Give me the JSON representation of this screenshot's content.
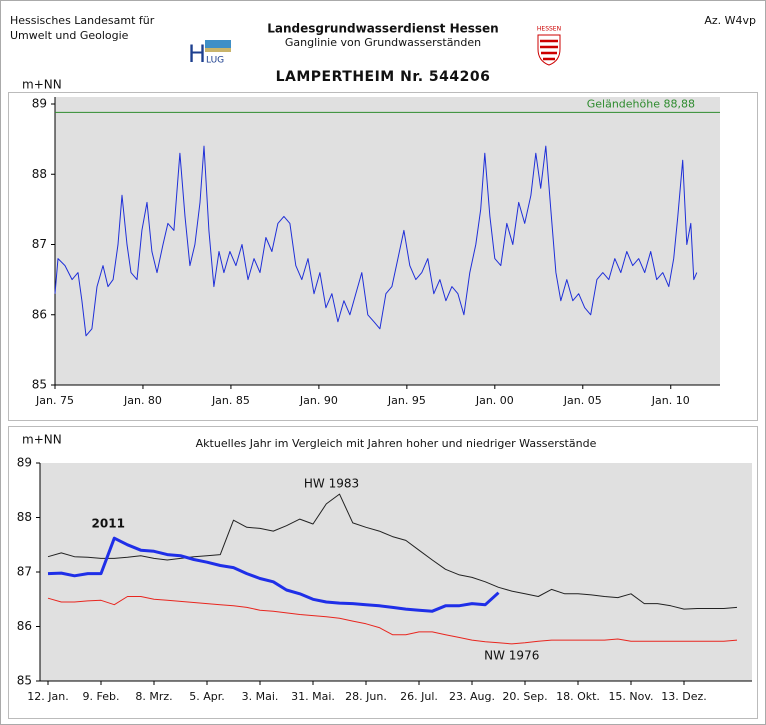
{
  "header": {
    "agency": [
      "Hessisches Landesamt für",
      "Umwelt und Geologie"
    ],
    "service": "Landesgrundwasserdienst  Hessen",
    "subtitle": "Ganglinie von Grundwasserständen",
    "station": "LAMPERTHEIM  Nr. 544206",
    "reference": "Az. W4vp",
    "logo_h": "H",
    "logo_lug": "LUG",
    "state": "HESSEN"
  },
  "chart_data": [
    {
      "type": "line",
      "ylabel": "m+NN",
      "x": [
        1975.0,
        1975.17,
        1975.57,
        1975.97,
        1976.31,
        1976.53,
        1976.76,
        1977.1,
        1977.39,
        1977.73,
        1978.01,
        1978.3,
        1978.58,
        1978.81,
        1979.09,
        1979.32,
        1979.66,
        1979.94,
        1980.23,
        1980.51,
        1980.8,
        1981.14,
        1981.42,
        1981.76,
        1982.1,
        1982.39,
        1982.67,
        1982.95,
        1983.24,
        1983.47,
        1983.75,
        1984.03,
        1984.32,
        1984.6,
        1984.94,
        1985.28,
        1985.63,
        1985.97,
        1986.31,
        1986.65,
        1986.99,
        1987.33,
        1987.67,
        1988.01,
        1988.35,
        1988.69,
        1989.03,
        1989.38,
        1989.72,
        1990.06,
        1990.4,
        1990.74,
        1991.08,
        1991.42,
        1991.76,
        1992.1,
        1992.44,
        1992.78,
        1993.13,
        1993.47,
        1993.81,
        1994.15,
        1994.49,
        1994.83,
        1995.17,
        1995.51,
        1995.85,
        1996.19,
        1996.53,
        1996.88,
        1997.22,
        1997.56,
        1997.9,
        1998.24,
        1998.58,
        1998.92,
        1999.2,
        1999.43,
        1999.72,
        2000.0,
        2000.34,
        2000.68,
        2001.02,
        2001.36,
        2001.7,
        2002.05,
        2002.33,
        2002.61,
        2002.9,
        2003.18,
        2003.47,
        2003.75,
        2004.09,
        2004.43,
        2004.77,
        2005.11,
        2005.45,
        2005.8,
        2006.14,
        2006.48,
        2006.82,
        2007.16,
        2007.5,
        2007.84,
        2008.18,
        2008.52,
        2008.86,
        2009.2,
        2009.55,
        2009.89,
        2010.17,
        2010.4,
        2010.68,
        2010.91,
        2011.14,
        2011.31,
        2011.48
      ],
      "series": [
        {
          "color": "#1f2fd8",
          "values": [
            86.3,
            86.8,
            86.7,
            86.5,
            86.6,
            86.2,
            85.7,
            85.8,
            86.4,
            86.7,
            86.4,
            86.5,
            87.0,
            87.7,
            87.0,
            86.6,
            86.5,
            87.2,
            87.6,
            86.9,
            86.6,
            87.0,
            87.3,
            87.2,
            88.3,
            87.4,
            86.7,
            87.0,
            87.6,
            88.4,
            87.2,
            86.4,
            86.9,
            86.6,
            86.9,
            86.7,
            87.0,
            86.5,
            86.8,
            86.6,
            87.1,
            86.9,
            87.3,
            87.4,
            87.3,
            86.7,
            86.5,
            86.8,
            86.3,
            86.6,
            86.1,
            86.3,
            85.9,
            86.2,
            86.0,
            86.3,
            86.6,
            86.0,
            85.9,
            85.8,
            86.3,
            86.4,
            86.8,
            87.2,
            86.7,
            86.5,
            86.6,
            86.8,
            86.3,
            86.5,
            86.2,
            86.4,
            86.3,
            86.0,
            86.6,
            87.0,
            87.5,
            88.3,
            87.4,
            86.8,
            86.7,
            87.3,
            87.0,
            87.6,
            87.3,
            87.7,
            88.3,
            87.8,
            88.4,
            87.5,
            86.6,
            86.2,
            86.5,
            86.2,
            86.3,
            86.1,
            86.0,
            86.5,
            86.6,
            86.5,
            86.8,
            86.6,
            86.9,
            86.7,
            86.8,
            86.6,
            86.9,
            86.5,
            86.6,
            86.4,
            86.8,
            87.4,
            88.2,
            87.0,
            87.3,
            86.5,
            86.6
          ]
        }
      ],
      "hlines": [
        {
          "value": 88.88,
          "label": "Geländehöhe 88,88",
          "color": "#2e8b2e"
        }
      ],
      "xlim": [
        1975,
        2012.8
      ],
      "xticks": [
        {
          "value": 1975,
          "label": "Jan. 75"
        },
        {
          "value": 1980,
          "label": "Jan. 80"
        },
        {
          "value": 1985,
          "label": "Jan. 85"
        },
        {
          "value": 1990,
          "label": "Jan. 90"
        },
        {
          "value": 1995,
          "label": "Jan. 95"
        },
        {
          "value": 2000,
          "label": "Jan. 00"
        },
        {
          "value": 2005,
          "label": "Jan. 05"
        },
        {
          "value": 2010,
          "label": "Jan. 10"
        }
      ],
      "ylim": [
        85,
        89
      ],
      "yticks": [
        85,
        86,
        87,
        88,
        89
      ]
    },
    {
      "type": "line",
      "title": "Aktuelles Jahr im Vergleich mit Jahren hoher und niedriger Wasserstände",
      "ylabel": "m+NN",
      "categories": [
        "12. Jan.",
        null,
        null,
        null,
        "9. Feb.",
        null,
        null,
        null,
        "8. Mrz.",
        null,
        null,
        null,
        "5. Apr.",
        null,
        null,
        null,
        "3. Mai.",
        null,
        null,
        null,
        "31. Mai.",
        null,
        null,
        null,
        "28. Jun.",
        null,
        null,
        null,
        "26. Jul.",
        null,
        null,
        null,
        "23. Aug.",
        null,
        null,
        null,
        "20. Sep.",
        null,
        null,
        null,
        "18. Okt.",
        null,
        null,
        null,
        "15. Nov.",
        null,
        null,
        null,
        "13. Dez.",
        null,
        null,
        null,
        null
      ],
      "series": [
        {
          "name": "HW 1983",
          "color": "#222222",
          "values": [
            87.28,
            87.35,
            87.28,
            87.27,
            87.25,
            87.25,
            87.27,
            87.3,
            87.25,
            87.22,
            87.25,
            87.28,
            87.3,
            87.32,
            87.95,
            87.82,
            87.8,
            87.75,
            87.85,
            87.97,
            87.88,
            88.25,
            88.43,
            87.9,
            87.82,
            87.75,
            87.65,
            87.58,
            87.4,
            87.22,
            87.05,
            86.95,
            86.9,
            86.82,
            86.72,
            86.65,
            86.6,
            86.55,
            86.68,
            86.6,
            86.6,
            86.58,
            86.55,
            86.53,
            86.6,
            86.42,
            86.42,
            86.38,
            86.32,
            86.33,
            86.33,
            86.33,
            86.35
          ]
        },
        {
          "name": "NW 1976",
          "color": "#e8261f",
          "values": [
            86.52,
            86.45,
            86.45,
            86.47,
            86.48,
            86.4,
            86.55,
            86.55,
            86.5,
            86.48,
            86.46,
            86.44,
            86.42,
            86.4,
            86.38,
            86.35,
            86.3,
            86.28,
            86.25,
            86.22,
            86.2,
            86.18,
            86.15,
            86.1,
            86.05,
            85.98,
            85.85,
            85.85,
            85.9,
            85.9,
            85.85,
            85.8,
            85.75,
            85.72,
            85.7,
            85.68,
            85.7,
            85.73,
            85.75,
            85.75,
            85.75,
            85.75,
            85.75,
            85.77,
            85.73,
            85.73,
            85.73,
            85.73,
            85.73,
            85.73,
            85.73,
            85.73,
            85.75
          ]
        },
        {
          "name": "2011",
          "color": "#1f2fe8",
          "values": [
            86.97,
            86.98,
            86.93,
            86.97,
            86.97,
            87.62,
            87.5,
            87.4,
            87.38,
            87.32,
            87.3,
            87.23,
            87.18,
            87.12,
            87.08,
            86.97,
            86.88,
            86.82,
            86.67,
            86.6,
            86.5,
            86.45,
            86.43,
            86.42,
            86.4,
            86.38,
            86.35,
            86.32,
            86.3,
            86.28,
            86.38,
            86.38,
            86.42,
            86.4,
            86.62,
            null,
            null,
            null,
            null,
            null,
            null,
            null,
            null,
            null,
            null,
            null,
            null,
            null,
            null,
            null,
            null,
            null,
            null
          ]
        }
      ],
      "ylim": [
        85,
        89
      ],
      "yticks": [
        85,
        86,
        87,
        88,
        89
      ]
    }
  ]
}
